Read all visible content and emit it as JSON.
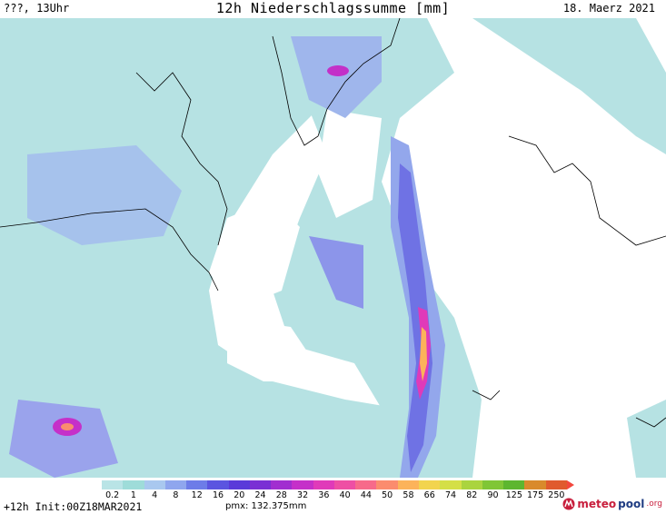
{
  "header": {
    "left": "???, 13Uhr",
    "title": "12h Niederschlagssumme [mm]",
    "date": "18. Maerz 2021"
  },
  "legend": {
    "labels": [
      "0.2",
      "1",
      "4",
      "8",
      "12",
      "16",
      "20",
      "24",
      "28",
      "32",
      "36",
      "40",
      "44",
      "50",
      "58",
      "66",
      "74",
      "82",
      "90",
      "125",
      "175",
      "250"
    ],
    "colors": [
      "#b9e4e6",
      "#9edcd9",
      "#a9c8ef",
      "#8fa6ee",
      "#6d7ce8",
      "#5b55e0",
      "#5a3ad9",
      "#7a2fd4",
      "#a12ed0",
      "#c530c9",
      "#e03ab9",
      "#ee4fa4",
      "#f76a8a",
      "#fb8c6e",
      "#fcb35a",
      "#f2d44e",
      "#d4df47",
      "#aad43f",
      "#80c636",
      "#5db62f",
      "#d98a2c",
      "#e05a2e"
    ],
    "arrow_color": "#f3473d"
  },
  "footer": {
    "run": "+12h Init:00Z18MAR2021",
    "pmx": "pmx: 132.375mm",
    "logo_part1": "meteo",
    "logo_part2": "pool",
    "logo_part3": ".org"
  }
}
